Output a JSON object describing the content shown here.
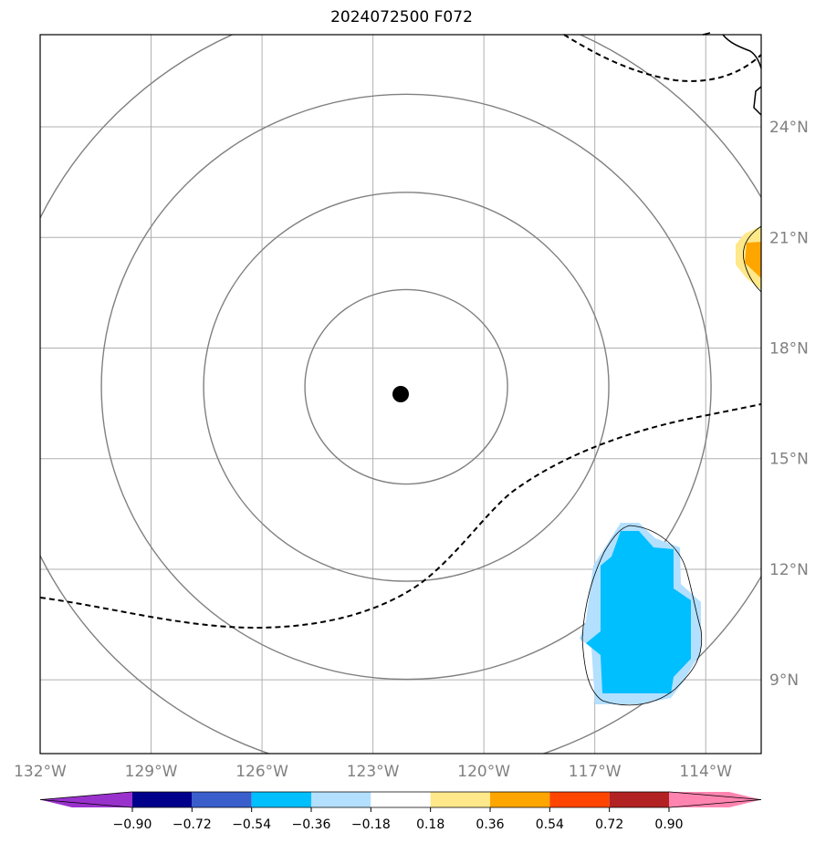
{
  "title": "2024072500 F072",
  "map": {
    "lon_range": [
      -132,
      -112.5
    ],
    "lat_range": [
      7,
      26.5
    ],
    "lon_ticks": [
      -132,
      -129,
      -126,
      -123,
      -120,
      -117,
      -114
    ],
    "lat_ticks": [
      9,
      12,
      15,
      18,
      21,
      24
    ],
    "lon_labels": [
      "132°W",
      "129°W",
      "126°W",
      "123°W",
      "120°W",
      "117°W",
      "114°W"
    ],
    "lat_labels": [
      "9°N",
      "12°N",
      "15°N",
      "18°N",
      "21°N",
      "24°N"
    ],
    "storm_center": {
      "lon": -122.1,
      "lat": 16.8
    },
    "range_rings_count": 4,
    "colors": {
      "grid": "#b0b0b0",
      "rings": "#808080",
      "coast": "#000000",
      "storm_marker": "#000000",
      "negative_fill": "#00bfff",
      "negative_light": "#b3e0ff",
      "positive_fill": "#ffa500",
      "positive_light": "#ffe88a"
    }
  },
  "colorbar": {
    "tick_labels": [
      "−0.90",
      "−0.72",
      "−0.54",
      "−0.36",
      "−0.18",
      "0.18",
      "0.36",
      "0.54",
      "0.72",
      "0.90"
    ],
    "colors": [
      "#9932cc",
      "#00008b",
      "#3a5fcd",
      "#00bfff",
      "#b3e0ff",
      "#ffffff",
      "#ffe88a",
      "#ffa500",
      "#ff4500",
      "#b22222",
      "#ff85b0"
    ]
  }
}
